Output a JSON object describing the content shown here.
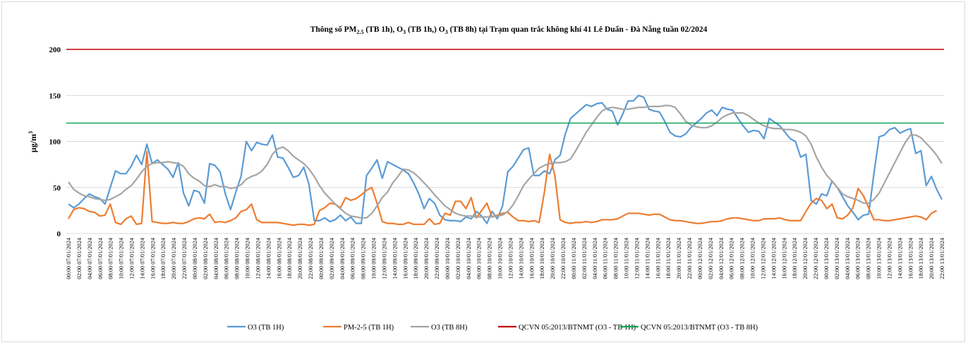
{
  "chart_data": {
    "type": "line",
    "title": {
      "prefix": "Thông số PM",
      "pm_sub": "2.5",
      "middle": " (TB 1h), O",
      "o_sub1": "3",
      "middle2": " (TB 1h,) O",
      "o_sub2": "3",
      "suffix": " (TB 8h) tại Trạm quan trắc không khí 41 Lê Duẩn - Đà Nẵng tuần 02/2024"
    },
    "ylabel": {
      "base": "µg/m",
      "sup": "3"
    },
    "ylim": [
      0,
      200
    ],
    "yticks": [
      0,
      50,
      100,
      150,
      200
    ],
    "grid": true,
    "legend_position": "bottom",
    "x_tick_labels": [
      "00:00 07/01/2024",
      "02:00 07/01/2024",
      "04:00 07/01/2024",
      "06:00 07/01/2024",
      "08:00 07/01/2024",
      "10:00 07/01/2024",
      "12:00 07/01/2024",
      "14:00 07/01/2024",
      "16:00 07/01/2024",
      "18:00 07/01/2024",
      "20:00 07/01/2024",
      "22:00 07/01/2024",
      "00:00 08/01/2024",
      "02:00 08/01/2024",
      "04:00 08/01/2024",
      "06:00 08/01/2024",
      "08:00 08/01/2024",
      "10:00 08/01/2024",
      "12:00 08/01/2024",
      "14:00 08/01/2024",
      "16:00 08/01/2024",
      "18:00 08/01/2024",
      "20:00 08/01/2024",
      "22:00 08/01/2024",
      "00:00 09/01/2024",
      "02:00 09/01/2024",
      "04:00 09/01/2024",
      "06:00 09/01/2024",
      "08:00 09/01/2024",
      "10:00 09/01/2024",
      "12:00 09/01/2024",
      "14:00 09/01/2024",
      "16:00 09/01/2024",
      "18:00 09/01/2024",
      "20:00 09/01/2024",
      "22:00 09/01/2024",
      "00:00 10/01/2024",
      "02:00 10/01/2024",
      "04:00 10/01/2024",
      "06:00 10/01/2024",
      "08:00 10/01/2024",
      "10:00 10/01/2024",
      "12:00 10/01/2024",
      "14:00 10/01/2024",
      "16:00 10/01/2024",
      "18:00 10/01/2024",
      "20:00 10/01/2024",
      "22:00 10/01/2024",
      "00:00 11/01/2024",
      "02:00 11/01/2024",
      "04:00 11/01/2024",
      "06:00 11/01/2024",
      "08:00 11/01/2024",
      "10:00 11/01/2024",
      "12:00 11/01/2024",
      "14:00 11/01/2024",
      "16:00 11/01/2024",
      "18:00 11/01/2024",
      "20:00 11/01/2024",
      "22:00 11/01/2024",
      "00:00 12/01/2024",
      "02:00 12/01/2024",
      "04:00 12/01/2024",
      "06:00 12/01/2024",
      "08:00 12/01/2024",
      "10:00 12/01/2024",
      "12:00 12/01/2024",
      "14:00 12/01/2024",
      "16:00 12/01/2024",
      "18:00 12/01/2024",
      "20:00 12/01/2024",
      "22:00 12/01/2024",
      "00:00 13/01/2024",
      "02:00 13/01/2024",
      "04:00 13/01/2024",
      "06:00 13/01/2024",
      "08:00 13/01/2024",
      "10:00 13/01/2024",
      "12:00 13/01/2024",
      "14:00 13/01/2024",
      "16:00 13/01/2024",
      "18:00 13/01/2024",
      "20:00 13/01/2024",
      "22:00 13/01/2024"
    ],
    "series": [
      {
        "name": "O3 (TB 1H)",
        "color": "#5b9bd5",
        "values": [
          32,
          28,
          32,
          38,
          43,
          40,
          38,
          32,
          50,
          68,
          65,
          65,
          73,
          85,
          75,
          97,
          76,
          80,
          75,
          70,
          61,
          77,
          44,
          30,
          47,
          45,
          33,
          76,
          74,
          67,
          43,
          26,
          45,
          62,
          100,
          90,
          99,
          97,
          96,
          107,
          83,
          82,
          72,
          61,
          63,
          72,
          53,
          14,
          14,
          17,
          13,
          15,
          20,
          14,
          18,
          11,
          11,
          63,
          71,
          80,
          60,
          78,
          75,
          72,
          69,
          65,
          55,
          43,
          27,
          38,
          33,
          20,
          15,
          14,
          14,
          13,
          18,
          16,
          24,
          19,
          11,
          24,
          16,
          30,
          67,
          73,
          82,
          91,
          93,
          63,
          63,
          68,
          65,
          80,
          85,
          108,
          125,
          130,
          135,
          140,
          138,
          141,
          142,
          135,
          133,
          118,
          130,
          144,
          144,
          150,
          148,
          135,
          133,
          132,
          122,
          110,
          106,
          105,
          108,
          115,
          120,
          125,
          131,
          134,
          128,
          137,
          135,
          134,
          125,
          117,
          110,
          112,
          111,
          103,
          125,
          121,
          117,
          110,
          103,
          100,
          83,
          86,
          36,
          32,
          43,
          41,
          57,
          50,
          40,
          30,
          23,
          15,
          20,
          21,
          65,
          105,
          107,
          113,
          115,
          109,
          112,
          114,
          87,
          90,
          52,
          62,
          48,
          37
        ]
      },
      {
        "name": "PM-2-5 (TB 1H)",
        "color": "#ed7d31",
        "values": [
          16,
          26,
          28,
          27,
          24,
          23,
          19,
          20,
          32,
          12,
          10,
          16,
          19,
          10,
          11,
          89,
          13,
          12,
          11,
          11,
          12,
          11,
          11,
          13,
          16,
          17,
          16,
          21,
          12,
          13,
          12,
          14,
          17,
          24,
          26,
          32,
          15,
          12,
          12,
          12,
          12,
          11,
          10,
          9,
          10,
          10,
          9,
          10,
          25,
          28,
          33,
          32,
          28,
          39,
          36,
          38,
          42,
          47,
          50,
          33,
          13,
          11,
          11,
          10,
          10,
          12,
          10,
          10,
          10,
          16,
          10,
          11,
          22,
          20,
          35,
          35,
          27,
          39,
          17,
          25,
          33,
          18,
          20,
          22,
          23,
          18,
          14,
          14,
          13,
          14,
          12,
          45,
          86,
          63,
          15,
          12,
          11,
          12,
          12,
          13,
          12,
          13,
          15,
          15,
          15,
          16,
          19,
          22,
          22,
          22,
          21,
          20,
          21,
          21,
          18,
          15,
          14,
          14,
          13,
          12,
          11,
          11,
          12,
          13,
          13,
          14,
          16,
          17,
          17,
          16,
          15,
          14,
          14,
          16,
          16,
          16,
          17,
          15,
          14,
          14,
          14,
          24,
          33,
          38,
          36,
          27,
          32,
          17,
          16,
          20,
          28,
          49,
          41,
          28,
          15,
          15,
          14,
          14,
          15,
          16,
          17,
          18,
          19,
          18,
          15,
          22,
          25
        ]
      },
      {
        "name": "O3 (TB 8H)",
        "color": "#a5a5a5",
        "values": [
          56,
          48,
          44,
          41,
          40,
          38,
          37,
          36,
          37,
          40,
          43,
          48,
          52,
          59,
          67,
          73,
          76,
          77,
          77,
          78,
          77,
          76,
          73,
          65,
          60,
          57,
          52,
          51,
          53,
          51,
          51,
          49,
          50,
          53,
          59,
          62,
          64,
          68,
          75,
          86,
          92,
          94,
          90,
          84,
          80,
          76,
          70,
          62,
          52,
          44,
          38,
          32,
          27,
          22,
          19,
          18,
          17,
          17,
          22,
          30,
          39,
          45,
          55,
          62,
          70,
          69,
          66,
          61,
          55,
          49,
          42,
          36,
          30,
          26,
          22,
          20,
          19,
          19,
          18,
          18,
          18,
          18,
          19,
          20,
          24,
          31,
          41,
          52,
          59,
          65,
          71,
          74,
          76,
          77,
          77,
          78,
          81,
          90,
          100,
          110,
          118,
          126,
          133,
          136,
          137,
          136,
          135,
          135,
          136,
          137,
          137,
          138,
          138,
          138,
          139,
          139,
          137,
          130,
          122,
          118,
          116,
          115,
          115,
          117,
          121,
          126,
          129,
          131,
          131,
          131,
          128,
          124,
          120,
          117,
          115,
          114,
          114,
          113,
          113,
          112,
          110,
          106,
          97,
          83,
          72,
          63,
          57,
          50,
          43,
          40,
          38,
          36,
          33,
          33,
          37,
          44,
          55,
          66,
          77,
          88,
          99,
          107,
          107,
          104,
          98,
          92,
          85,
          76
        ]
      },
      {
        "name": "QCVN 05:2013/BTNMT (O3 - TB 1H)",
        "color": "#c00000",
        "constant": 200
      },
      {
        "name": "QCVN 05:2013/BTNMT (O3 - TB 8H)",
        "color": "#00a04e",
        "constant": 120
      }
    ]
  }
}
